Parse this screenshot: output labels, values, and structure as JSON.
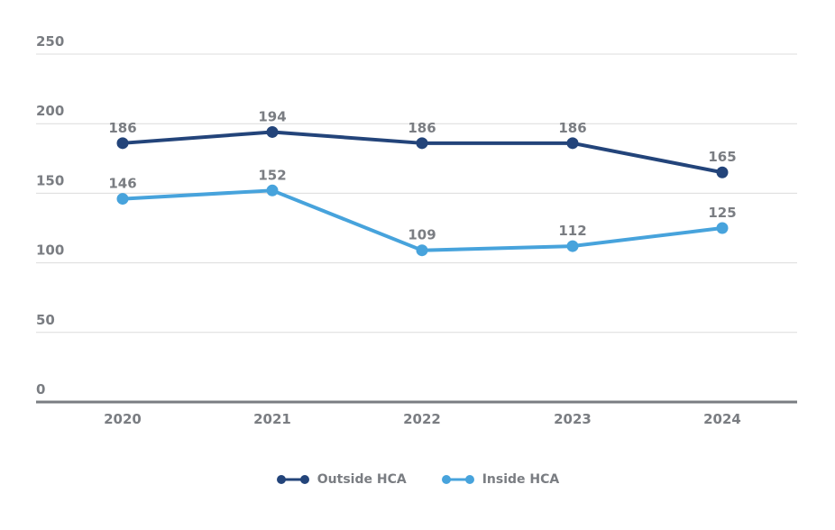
{
  "chart_data": {
    "type": "line",
    "title": "",
    "xlabel": "",
    "ylabel": "",
    "categories": [
      "2020",
      "2021",
      "2022",
      "2023",
      "2024"
    ],
    "yticks": [
      "0",
      "50",
      "100",
      "150",
      "200",
      "250"
    ],
    "ylim": [
      0,
      250
    ],
    "grid": true,
    "legend_position": "bottom-center",
    "series": [
      {
        "name": "Outside HCA",
        "color": "#23447a",
        "values": [
          186,
          194,
          186,
          186,
          165
        ]
      },
      {
        "name": "Inside HCA",
        "color": "#47a3dc",
        "values": [
          146,
          152,
          109,
          112,
          125
        ]
      }
    ]
  }
}
